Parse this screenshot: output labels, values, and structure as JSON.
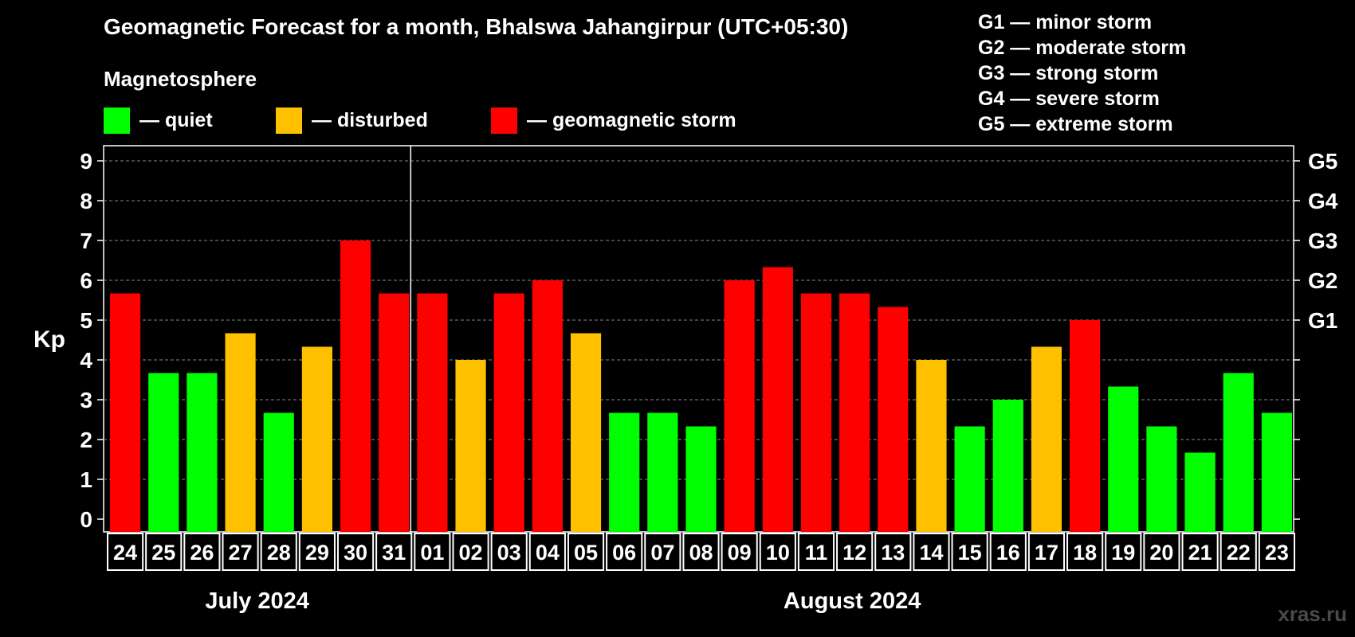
{
  "title": "Geomagnetic Forecast for a month, Bhalswa Jahangirpur (UTC+05:30)",
  "legend": {
    "heading": "Magnetosphere",
    "items": [
      {
        "label": "— quiet",
        "color": "#00ff00"
      },
      {
        "label": "— disturbed",
        "color": "#ffc000"
      },
      {
        "label": "— geomagnetic storm",
        "color": "#ff0000"
      }
    ]
  },
  "storm_scale": [
    "G1 — minor storm",
    "G2 — moderate storm",
    "G3 — strong storm",
    "G4 — severe storm",
    "G5 — extreme storm"
  ],
  "watermark": "xras.ru",
  "colors": {
    "quiet": "#00ff00",
    "disturbed": "#ffc000",
    "storm": "#ff0000"
  },
  "chart_data": {
    "type": "bar",
    "ylabel": "Kp",
    "ylim": [
      0,
      9
    ],
    "yticks": [
      "0",
      "1",
      "2",
      "3",
      "4",
      "5",
      "6",
      "7",
      "8",
      "9"
    ],
    "right_axis_labels": [
      {
        "kp": 5,
        "label": "G1"
      },
      {
        "kp": 6,
        "label": "G2"
      },
      {
        "kp": 7,
        "label": "G3"
      },
      {
        "kp": 8,
        "label": "G4"
      },
      {
        "kp": 9,
        "label": "G5"
      }
    ],
    "grid": true,
    "categories": [
      "24",
      "25",
      "26",
      "27",
      "28",
      "29",
      "30",
      "31",
      "01",
      "02",
      "03",
      "04",
      "05",
      "06",
      "07",
      "08",
      "09",
      "10",
      "11",
      "12",
      "13",
      "14",
      "15",
      "16",
      "17",
      "18",
      "19",
      "20",
      "21",
      "22",
      "23"
    ],
    "values": [
      5.67,
      3.67,
      3.67,
      4.67,
      2.67,
      4.33,
      7,
      5.67,
      5.67,
      4,
      5.67,
      6,
      4.67,
      2.67,
      2.67,
      2.33,
      6,
      6.33,
      5.67,
      5.67,
      5.33,
      4,
      2.33,
      3,
      4.33,
      5,
      3.33,
      2.33,
      1.67,
      3.67,
      2.67
    ],
    "levels": [
      "storm",
      "quiet",
      "quiet",
      "disturbed",
      "quiet",
      "disturbed",
      "storm",
      "storm",
      "storm",
      "disturbed",
      "storm",
      "storm",
      "disturbed",
      "quiet",
      "quiet",
      "quiet",
      "storm",
      "storm",
      "storm",
      "storm",
      "storm",
      "disturbed",
      "quiet",
      "quiet",
      "disturbed",
      "storm",
      "quiet",
      "quiet",
      "quiet",
      "quiet",
      "quiet"
    ],
    "month_groups": [
      {
        "label": "July 2024",
        "count": 8
      },
      {
        "label": "August 2024",
        "count": 23
      }
    ]
  }
}
